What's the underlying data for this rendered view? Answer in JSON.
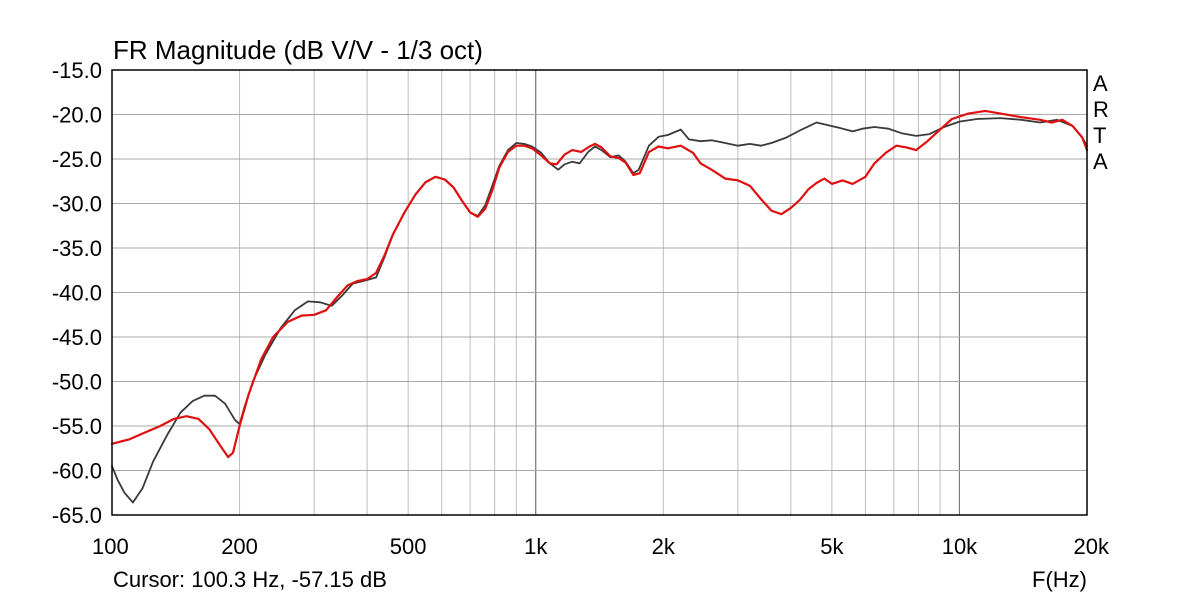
{
  "chart_data": {
    "type": "line",
    "title": "FR Magnitude (dB V/V - 1/3 oct)",
    "xlabel": "F(Hz)",
    "ylabel": "",
    "x_scale": "log",
    "xlim": [
      100,
      20000
    ],
    "ylim": [
      -65,
      -15
    ],
    "grid": true,
    "y_ticks": [
      "-15.0",
      "-20.0",
      "-25.0",
      "-30.0",
      "-35.0",
      "-40.0",
      "-45.0",
      "-50.0",
      "-55.0",
      "-60.0",
      "-65.0"
    ],
    "x_ticks": [
      {
        "value": 100,
        "label": "100"
      },
      {
        "value": 200,
        "label": "200"
      },
      {
        "value": 500,
        "label": "500"
      },
      {
        "value": 1000,
        "label": "1k"
      },
      {
        "value": 2000,
        "label": "2k"
      },
      {
        "value": 5000,
        "label": "5k"
      },
      {
        "value": 10000,
        "label": "10k"
      },
      {
        "value": 20000,
        "label": "20k"
      }
    ],
    "series": [
      {
        "color": "#3a3a3a",
        "points": [
          [
            100,
            -59.5
          ],
          [
            103,
            -61
          ],
          [
            107,
            -62.5
          ],
          [
            112,
            -63.6
          ],
          [
            118,
            -62
          ],
          [
            125,
            -59
          ],
          [
            135,
            -56
          ],
          [
            145,
            -53.5
          ],
          [
            155,
            -52.2
          ],
          [
            165,
            -51.6
          ],
          [
            175,
            -51.6
          ],
          [
            185,
            -52.5
          ],
          [
            195,
            -54.3
          ],
          [
            200,
            -54.8
          ],
          [
            205,
            -53
          ],
          [
            215,
            -50
          ],
          [
            230,
            -47
          ],
          [
            250,
            -44
          ],
          [
            270,
            -42
          ],
          [
            290,
            -41
          ],
          [
            310,
            -41.1
          ],
          [
            330,
            -41.5
          ],
          [
            350,
            -40.3
          ],
          [
            370,
            -39
          ],
          [
            400,
            -38.6
          ],
          [
            420,
            -38.3
          ],
          [
            440,
            -36
          ],
          [
            460,
            -33.5
          ],
          [
            490,
            -31
          ],
          [
            520,
            -29
          ],
          [
            550,
            -27.6
          ],
          [
            580,
            -27
          ],
          [
            610,
            -27.3
          ],
          [
            640,
            -28.2
          ],
          [
            670,
            -29.7
          ],
          [
            700,
            -31
          ],
          [
            730,
            -31.4
          ],
          [
            760,
            -30.2
          ],
          [
            790,
            -28
          ],
          [
            820,
            -25.8
          ],
          [
            860,
            -24
          ],
          [
            900,
            -23.2
          ],
          [
            940,
            -23.3
          ],
          [
            980,
            -23.6
          ],
          [
            1030,
            -24.3
          ],
          [
            1080,
            -25.5
          ],
          [
            1130,
            -26.2
          ],
          [
            1170,
            -25.6
          ],
          [
            1220,
            -25.3
          ],
          [
            1270,
            -25.5
          ],
          [
            1330,
            -24.2
          ],
          [
            1380,
            -23.6
          ],
          [
            1430,
            -24
          ],
          [
            1500,
            -24.8
          ],
          [
            1570,
            -24.6
          ],
          [
            1630,
            -25.3
          ],
          [
            1700,
            -26.6
          ],
          [
            1750,
            -26.2
          ],
          [
            1850,
            -23.5
          ],
          [
            1950,
            -22.5
          ],
          [
            2050,
            -22.3
          ],
          [
            2200,
            -21.7
          ],
          [
            2300,
            -22.8
          ],
          [
            2450,
            -23
          ],
          [
            2600,
            -22.9
          ],
          [
            2800,
            -23.2
          ],
          [
            3000,
            -23.5
          ],
          [
            3200,
            -23.3
          ],
          [
            3400,
            -23.5
          ],
          [
            3600,
            -23.2
          ],
          [
            3900,
            -22.6
          ],
          [
            4200,
            -21.8
          ],
          [
            4600,
            -20.9
          ],
          [
            4900,
            -21.2
          ],
          [
            5200,
            -21.5
          ],
          [
            5600,
            -21.9
          ],
          [
            5900,
            -21.6
          ],
          [
            6300,
            -21.4
          ],
          [
            6800,
            -21.6
          ],
          [
            7300,
            -22.1
          ],
          [
            7900,
            -22.4
          ],
          [
            8500,
            -22.2
          ],
          [
            9200,
            -21.4
          ],
          [
            10000,
            -20.8
          ],
          [
            11000,
            -20.5
          ],
          [
            12500,
            -20.4
          ],
          [
            14000,
            -20.6
          ],
          [
            15500,
            -20.9
          ],
          [
            17000,
            -20.6
          ],
          [
            18500,
            -21.3
          ],
          [
            19500,
            -22.6
          ],
          [
            20000,
            -23.5
          ]
        ]
      },
      {
        "color": "#e01010",
        "points": [
          [
            100,
            -57
          ],
          [
            110,
            -56.5
          ],
          [
            120,
            -55.7
          ],
          [
            130,
            -55
          ],
          [
            140,
            -54.2
          ],
          [
            150,
            -53.9
          ],
          [
            160,
            -54.2
          ],
          [
            170,
            -55.4
          ],
          [
            180,
            -57.2
          ],
          [
            188,
            -58.5
          ],
          [
            193,
            -58
          ],
          [
            200,
            -55
          ],
          [
            210,
            -51.5
          ],
          [
            225,
            -47.5
          ],
          [
            240,
            -45
          ],
          [
            260,
            -43.3
          ],
          [
            280,
            -42.6
          ],
          [
            300,
            -42.5
          ],
          [
            320,
            -42
          ],
          [
            340,
            -40.5
          ],
          [
            360,
            -39.2
          ],
          [
            380,
            -38.7
          ],
          [
            400,
            -38.5
          ],
          [
            420,
            -37.8
          ],
          [
            440,
            -35.8
          ],
          [
            460,
            -33.5
          ],
          [
            490,
            -31
          ],
          [
            520,
            -29
          ],
          [
            550,
            -27.6
          ],
          [
            580,
            -27
          ],
          [
            610,
            -27.3
          ],
          [
            640,
            -28.2
          ],
          [
            670,
            -29.7
          ],
          [
            700,
            -31
          ],
          [
            730,
            -31.5
          ],
          [
            760,
            -30.6
          ],
          [
            790,
            -28.5
          ],
          [
            820,
            -26
          ],
          [
            860,
            -24.2
          ],
          [
            900,
            -23.5
          ],
          [
            940,
            -23.5
          ],
          [
            980,
            -23.8
          ],
          [
            1030,
            -24.6
          ],
          [
            1080,
            -25.5
          ],
          [
            1120,
            -25.6
          ],
          [
            1170,
            -24.5
          ],
          [
            1220,
            -24
          ],
          [
            1280,
            -24.2
          ],
          [
            1340,
            -23.6
          ],
          [
            1380,
            -23.3
          ],
          [
            1430,
            -23.7
          ],
          [
            1500,
            -24.7
          ],
          [
            1570,
            -24.9
          ],
          [
            1630,
            -25.4
          ],
          [
            1700,
            -26.8
          ],
          [
            1760,
            -26.6
          ],
          [
            1850,
            -24.2
          ],
          [
            1950,
            -23.6
          ],
          [
            2050,
            -23.8
          ],
          [
            2200,
            -23.5
          ],
          [
            2350,
            -24.3
          ],
          [
            2450,
            -25.5
          ],
          [
            2600,
            -26.2
          ],
          [
            2800,
            -27.2
          ],
          [
            3000,
            -27.4
          ],
          [
            3200,
            -28
          ],
          [
            3400,
            -29.5
          ],
          [
            3600,
            -30.8
          ],
          [
            3800,
            -31.2
          ],
          [
            4000,
            -30.5
          ],
          [
            4200,
            -29.6
          ],
          [
            4400,
            -28.4
          ],
          [
            4600,
            -27.7
          ],
          [
            4800,
            -27.2
          ],
          [
            5000,
            -27.8
          ],
          [
            5300,
            -27.4
          ],
          [
            5600,
            -27.8
          ],
          [
            6000,
            -27
          ],
          [
            6300,
            -25.5
          ],
          [
            6700,
            -24.3
          ],
          [
            7100,
            -23.5
          ],
          [
            7500,
            -23.7
          ],
          [
            7900,
            -24
          ],
          [
            8400,
            -23
          ],
          [
            9000,
            -21.7
          ],
          [
            9600,
            -20.5
          ],
          [
            10500,
            -19.9
          ],
          [
            11500,
            -19.6
          ],
          [
            12500,
            -19.9
          ],
          [
            14000,
            -20.3
          ],
          [
            15500,
            -20.6
          ],
          [
            16500,
            -20.9
          ],
          [
            17500,
            -20.6
          ],
          [
            18500,
            -21.3
          ],
          [
            19500,
            -22.6
          ],
          [
            20000,
            -24
          ]
        ]
      }
    ],
    "side_label": [
      "A",
      "R",
      "T",
      "A"
    ]
  },
  "footer": {
    "cursor_text": "Cursor: 100.3 Hz, -57.15 dB"
  }
}
